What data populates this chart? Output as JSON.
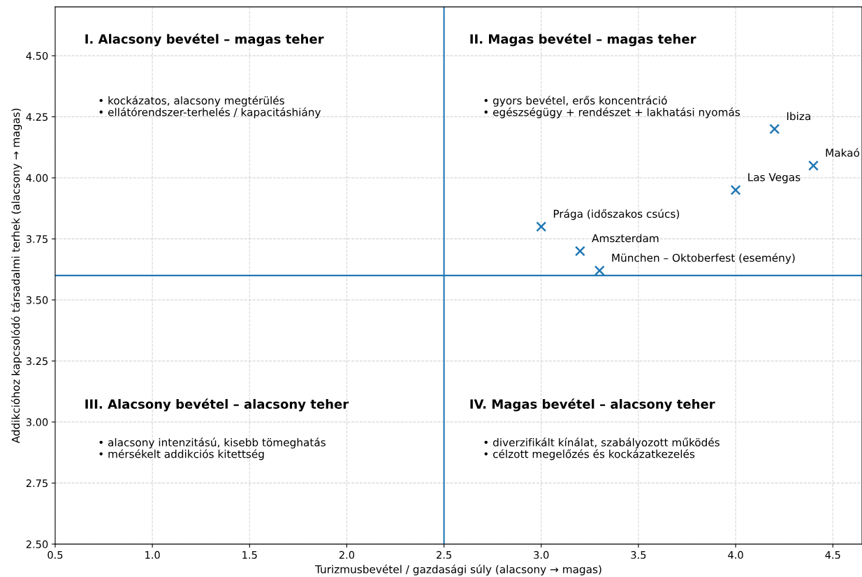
{
  "chart_data": {
    "type": "scatter",
    "xlabel": "Turizmusbevétel / gazdasági súly (alacsony → magas)",
    "ylabel": "Addikcióhoz kapcsolódó társadalmi terhek (alacsony → magas)",
    "x": [
      4.2,
      4.4,
      4.0,
      3.0,
      3.2,
      3.3
    ],
    "values": [
      4.2,
      4.05,
      3.95,
      3.8,
      3.7,
      3.62
    ],
    "color": "#1f77b4",
    "marker": "cross",
    "grid": true,
    "legend": false,
    "xlim": [
      0.5,
      4.65
    ],
    "ylim": [
      2.5,
      4.7
    ],
    "xticks": [
      {
        "value": 0.5,
        "label": "0.5"
      },
      {
        "value": 1.0,
        "label": "1.0"
      },
      {
        "value": 1.5,
        "label": "1.5"
      },
      {
        "value": 2.0,
        "label": "2.0"
      },
      {
        "value": 2.5,
        "label": "2.5"
      },
      {
        "value": 3.0,
        "label": "3.0"
      },
      {
        "value": 3.5,
        "label": "3.5"
      },
      {
        "value": 4.0,
        "label": "4.0"
      },
      {
        "value": 4.5,
        "label": "4.5"
      }
    ],
    "yticks": [
      {
        "value": 2.5,
        "label": "2.50"
      },
      {
        "value": 2.75,
        "label": "2.75"
      },
      {
        "value": 3.0,
        "label": "3.00"
      },
      {
        "value": 3.25,
        "label": "3.25"
      },
      {
        "value": 3.5,
        "label": "3.50"
      },
      {
        "value": 3.75,
        "label": "3.75"
      },
      {
        "value": 4.0,
        "label": "4.00"
      },
      {
        "value": 4.25,
        "label": "4.25"
      },
      {
        "value": 4.5,
        "label": "4.50"
      }
    ],
    "ref_lines": [
      {
        "axis": "x",
        "value": 2.5,
        "color": "#1f77b4"
      },
      {
        "axis": "y",
        "value": 3.6,
        "color": "#1f77b4"
      }
    ],
    "annotations": [
      {
        "text": "Ibiza",
        "x": 4.2,
        "y": 4.2
      },
      {
        "text": "Makaó",
        "x": 4.4,
        "y": 4.05
      },
      {
        "text": "Las Vegas",
        "x": 4.0,
        "y": 3.95
      },
      {
        "text": "Prága (időszakos csúcs)",
        "x": 3.0,
        "y": 3.8
      },
      {
        "text": "Amszterdam",
        "x": 3.2,
        "y": 3.7
      },
      {
        "text": "München – Oktoberfest (esemény)",
        "x": 3.3,
        "y": 3.62
      },
      "I. Alacsony bevétel – magas teher",
      "• kockázatos, alacsony megtérülés\n• ellátórendszer-terhelés / kapacitáshiány",
      "II. Magas bevétel – magas teher",
      "• gyors bevétel, erős koncentráció\n• egészségügy + rendészet + lakhatási nyomás",
      "III. Alacsony bevétel – alacsony teher",
      "• alacsony intenzitású, kisebb tömeghatás\n• mérsékelt addikciós kitettség",
      "IV. Magas bevétel – alacsony teher",
      "• diverzifikált kínálat, szabályozott működés\n• célzott megelőzés és kockázatkezelés"
    ]
  }
}
